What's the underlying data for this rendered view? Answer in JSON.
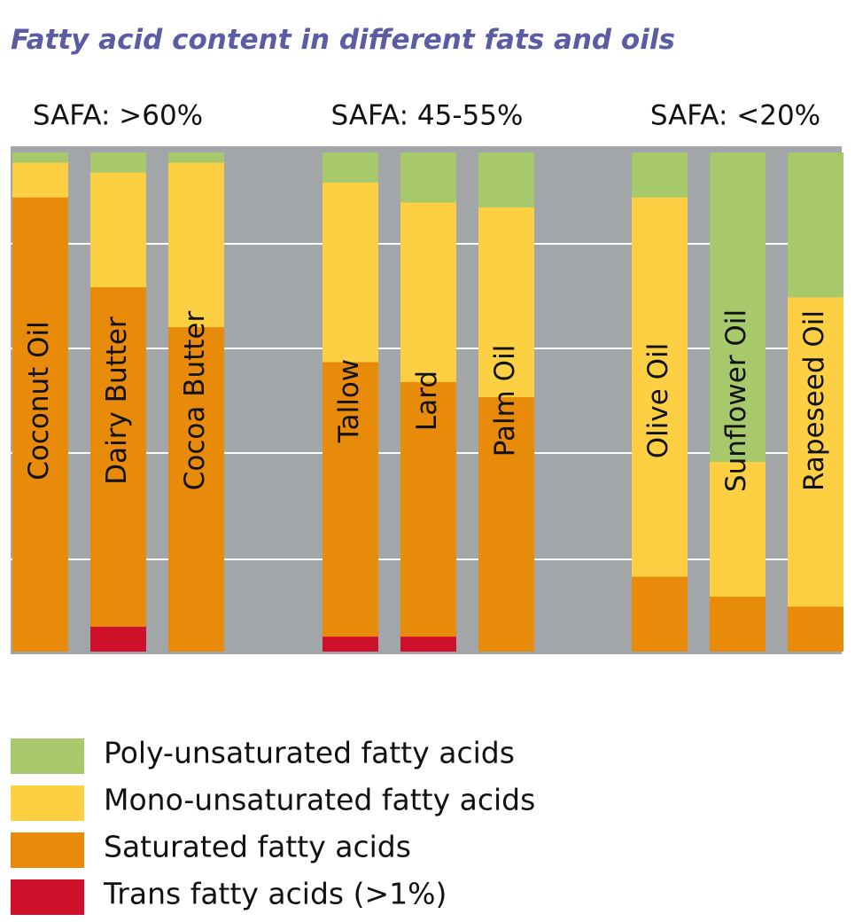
{
  "chart_data": {
    "type": "stacked_bar",
    "title": "Fatty acid content in different fats and oils",
    "group_labels": [
      "SAFA: >60%",
      "SAFA: 45-55%",
      "SAFA: <20%"
    ],
    "categories": [
      "Coconut Oil",
      "Dairy Butter",
      "Cocoa Butter",
      "Tallow",
      "Lard",
      "Palm Oil",
      "Olive Oil",
      "Sunflower Oil",
      "Rapeseed Oil"
    ],
    "ylim": [
      0,
      100
    ],
    "grid": true,
    "series": [
      {
        "name": "Trans fatty acids (>1%)",
        "color": "#d0112b",
        "values": [
          0,
          5,
          0,
          3,
          3,
          0,
          0,
          0,
          0
        ]
      },
      {
        "name": "Saturated fatty acids",
        "color": "#e88a0a",
        "values": [
          91,
          68,
          65,
          55,
          51,
          51,
          15,
          11,
          9
        ]
      },
      {
        "name": "Mono-unsaturated fatty acids",
        "color": "#fdd043",
        "values": [
          7,
          23,
          33,
          36,
          36,
          38,
          76,
          27,
          62
        ]
      },
      {
        "name": "Poly-unsaturated fatty acids",
        "color": "#a7c96b",
        "values": [
          2,
          4,
          2,
          6,
          10,
          11,
          9,
          62,
          29
        ]
      }
    ]
  }
}
